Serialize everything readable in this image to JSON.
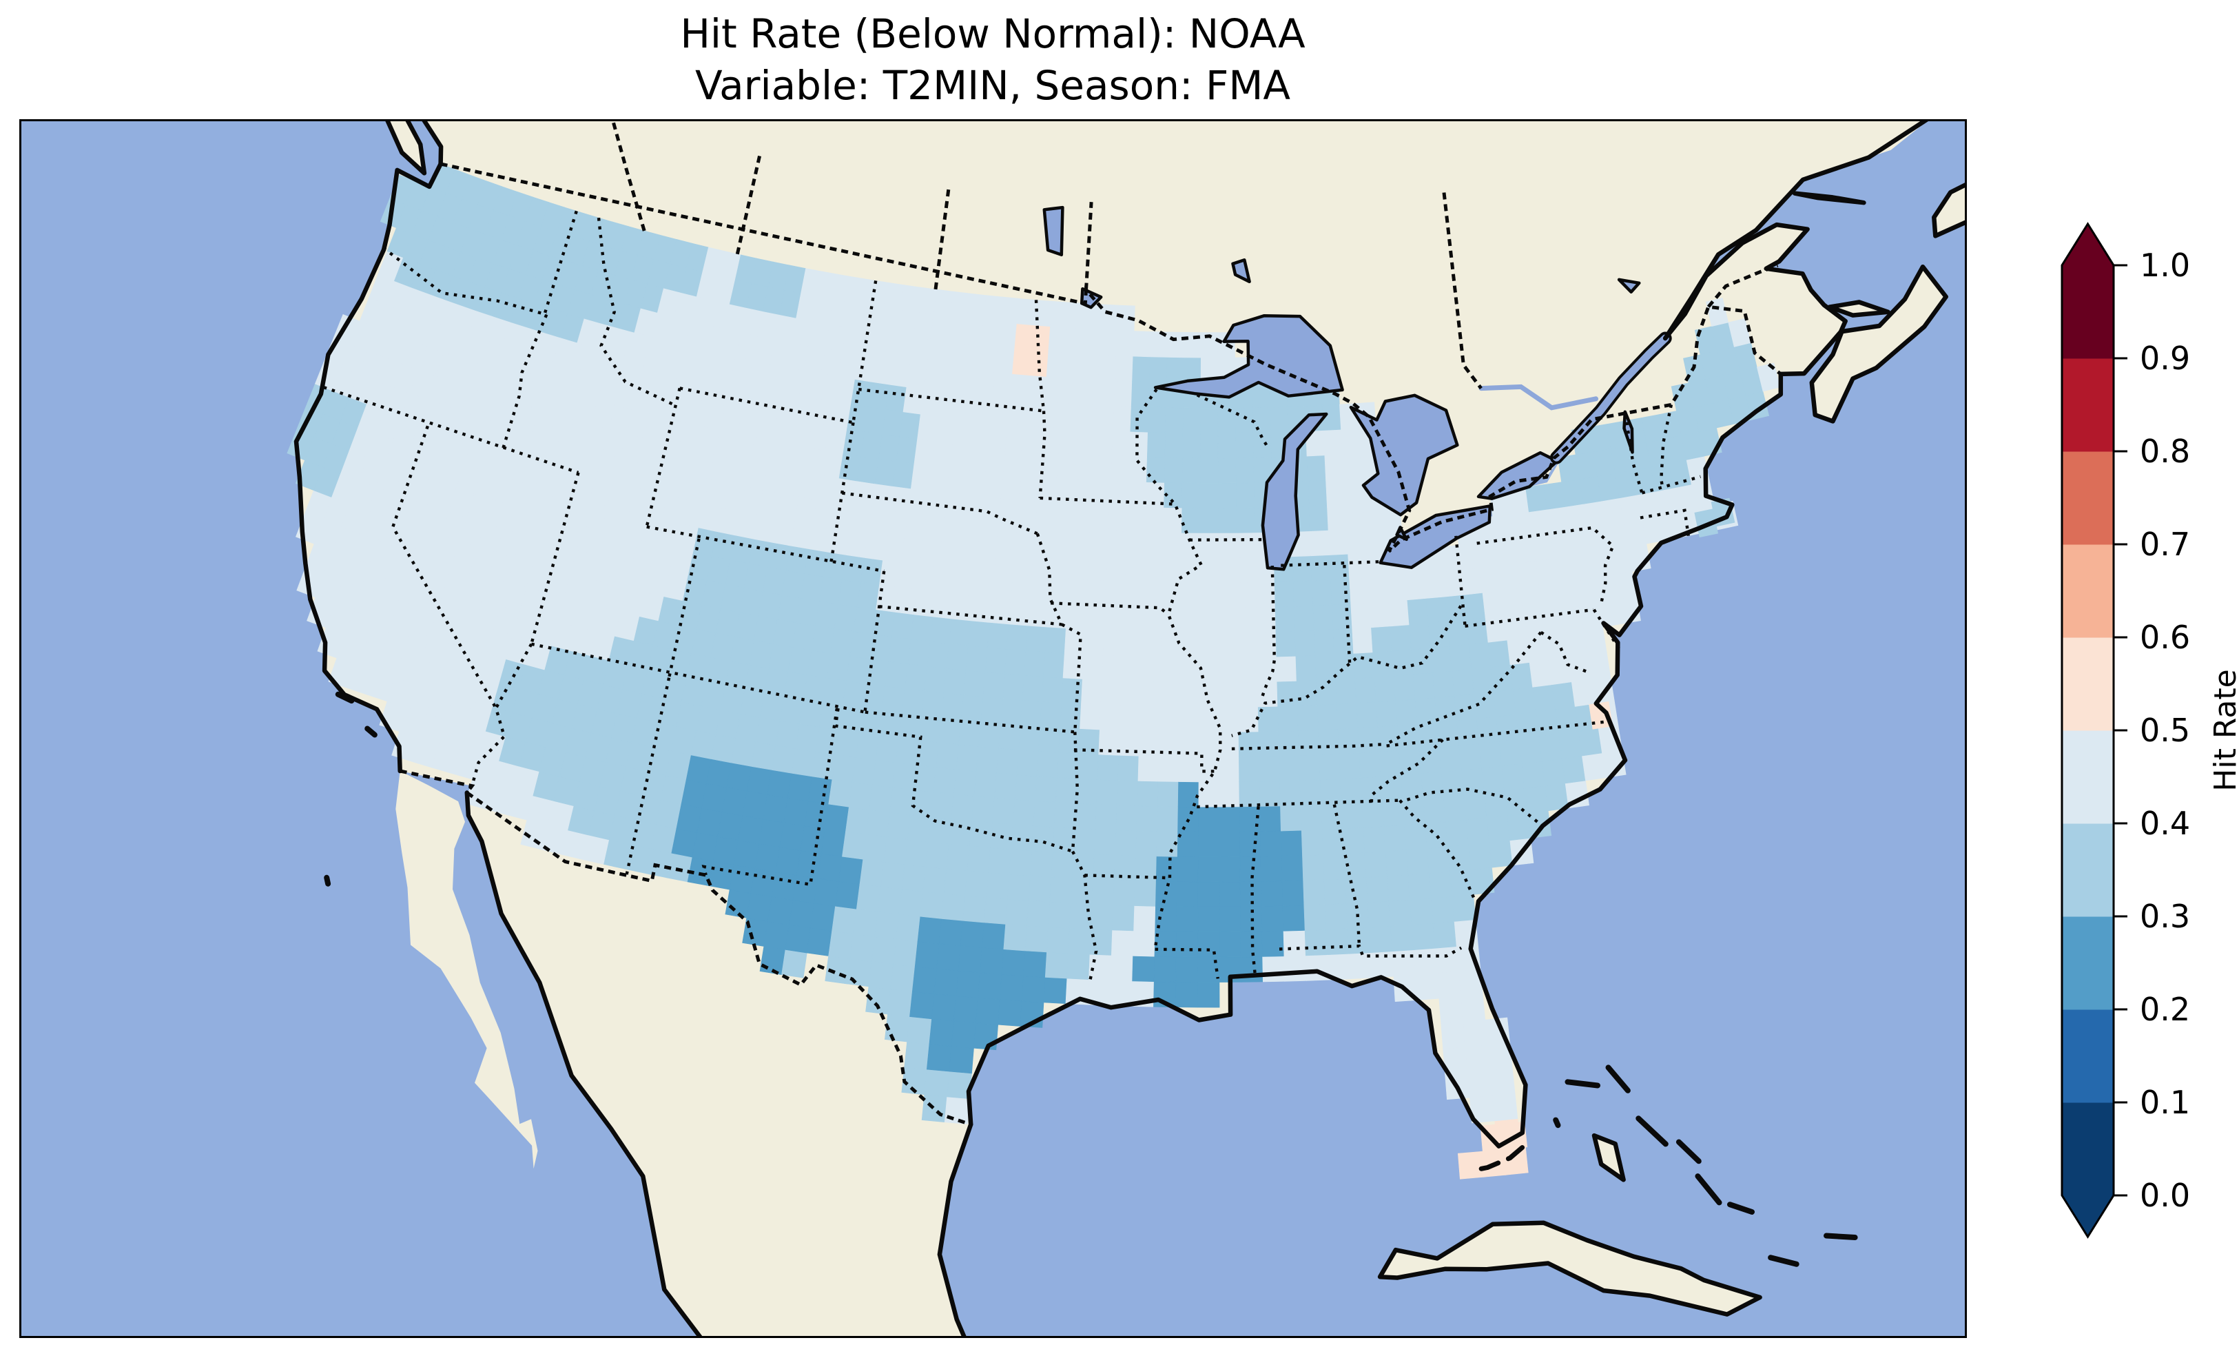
{
  "figure": {
    "title_line1": "Hit Rate (Below Normal): NOAA",
    "title_line2": "Variable: T2MIN, Season: FMA"
  },
  "colorbar": {
    "label": "Hit Rate",
    "orientation": "vertical",
    "extend": "both",
    "ticks": [
      "0.0",
      "0.1",
      "0.2",
      "0.3",
      "0.4",
      "0.5",
      "0.6",
      "0.7",
      "0.8",
      "0.9",
      "1.0"
    ],
    "bins": [
      {
        "range": "0.0-0.1",
        "color": "#0b3d70"
      },
      {
        "range": "0.1-0.2",
        "color": "#2569ad"
      },
      {
        "range": "0.2-0.3",
        "color": "#539dc8"
      },
      {
        "range": "0.3-0.4",
        "color": "#a7cfe4"
      },
      {
        "range": "0.4-0.5",
        "color": "#dce9f2"
      },
      {
        "range": "0.5-0.6",
        "color": "#fbe3d4"
      },
      {
        "range": "0.6-0.7",
        "color": "#f6b396"
      },
      {
        "range": "0.7-0.8",
        "color": "#dc6e58"
      },
      {
        "range": "0.8-0.9",
        "color": "#b2182b"
      },
      {
        "range": "0.9-1.0",
        "color": "#67001f"
      }
    ]
  },
  "map": {
    "ocean_color": "#92afdf",
    "land_color": "#f1eedd",
    "lake_color": "#8da7da",
    "line_color": "#0a0a0a"
  },
  "chart_data": {
    "type": "heatmap",
    "subtype": "geographic-grid-map",
    "title": "Hit Rate (Below Normal): NOAA",
    "variable": "T2MIN",
    "season": "FMA",
    "source": "NOAA",
    "measure": "Hit Rate",
    "value_range": [
      0.0,
      1.0
    ],
    "bin_width": 0.1,
    "grid_step_deg": 0.7,
    "legend_position": "right",
    "default_region": {
      "name": "conus-background",
      "hit_rate": "0.4-0.5",
      "bin": 4
    },
    "regions": [
      {
        "name": "red-river-valley-nd-mn",
        "hit_rate": "0.5-0.6",
        "bin": 5,
        "polygon": [
          [
            -97.7,
            48.6
          ],
          [
            -96.2,
            48.6
          ],
          [
            -96.2,
            46.7
          ],
          [
            -97.7,
            46.7
          ]
        ]
      },
      {
        "name": "south-florida-tip",
        "hit_rate": "0.5-0.6",
        "bin": 5,
        "polygon": [
          [
            -81.4,
            26.1
          ],
          [
            -80.2,
            26.1
          ],
          [
            -80.2,
            25.0
          ],
          [
            -81.4,
            25.0
          ]
        ]
      },
      {
        "name": "west-texas-new-mexico",
        "hit_rate": "0.2-0.3",
        "bin": 2,
        "polygon": [
          [
            -107.8,
            34.6
          ],
          [
            -105.8,
            34.9
          ],
          [
            -103.4,
            34.9
          ],
          [
            -102.0,
            33.6
          ],
          [
            -101.4,
            32.2
          ],
          [
            -102.3,
            30.3
          ],
          [
            -104.2,
            29.4
          ],
          [
            -106.0,
            31.0
          ],
          [
            -107.6,
            32.4
          ]
        ]
      },
      {
        "name": "central-coastal-texas",
        "hit_rate": "0.2-0.3",
        "bin": 2,
        "polygon": [
          [
            -99.6,
            31.6
          ],
          [
            -98.3,
            31.7
          ],
          [
            -96.2,
            31.0
          ],
          [
            -94.4,
            29.7
          ],
          [
            -95.7,
            28.4
          ],
          [
            -97.3,
            26.9
          ],
          [
            -98.3,
            27.5
          ],
          [
            -99.3,
            29.0
          ],
          [
            -99.7,
            30.4
          ]
        ]
      },
      {
        "name": "lower-mississippi-gulf",
        "hit_rate": "0.2-0.3",
        "bin": 2,
        "polygon": [
          [
            -90.6,
            35.4
          ],
          [
            -88.1,
            35.0
          ],
          [
            -86.7,
            33.9
          ],
          [
            -86.6,
            31.9
          ],
          [
            -88.4,
            30.2
          ],
          [
            -90.3,
            29.2
          ],
          [
            -92.2,
            30.2
          ],
          [
            -91.6,
            32.6
          ],
          [
            -90.9,
            34.3
          ]
        ]
      },
      {
        "name": "pacific-northwest",
        "hit_rate": "0.3-0.4",
        "bin": 3,
        "polygon": [
          [
            -125.3,
            49.4
          ],
          [
            -110.9,
            49.4
          ],
          [
            -111.6,
            47.9
          ],
          [
            -113.6,
            46.3
          ],
          [
            -117.0,
            45.4
          ],
          [
            -122.0,
            45.3
          ],
          [
            -124.9,
            46.7
          ]
        ]
      },
      {
        "name": "north-central-montana",
        "hit_rate": "0.3-0.4",
        "bin": 3,
        "polygon": [
          [
            -109.5,
            49.4
          ],
          [
            -106.6,
            49.4
          ],
          [
            -106.9,
            47.6
          ],
          [
            -109.6,
            47.8
          ]
        ]
      },
      {
        "name": "north-california-coast",
        "hit_rate": "0.3-0.4",
        "bin": 3,
        "polygon": [
          [
            -124.6,
            42.3
          ],
          [
            -122.4,
            42.3
          ],
          [
            -122.8,
            39.2
          ],
          [
            -124.3,
            39.2
          ]
        ]
      },
      {
        "name": "west-south-dakota",
        "hit_rate": "0.3-0.4",
        "bin": 3,
        "polygon": [
          [
            -104.1,
            45.9
          ],
          [
            -101.9,
            45.9
          ],
          [
            -101.4,
            43.1
          ],
          [
            -104.1,
            43.1
          ]
        ]
      },
      {
        "name": "southwest-and-southern-plains",
        "hit_rate": "0.3-0.4",
        "bin": 3,
        "polygon": [
          [
            -109.2,
            41.3
          ],
          [
            -102.0,
            41.3
          ],
          [
            -102.0,
            40.1
          ],
          [
            -97.4,
            40.2
          ],
          [
            -95.4,
            40.0
          ],
          [
            -94.0,
            36.6
          ],
          [
            -90.4,
            35.1
          ],
          [
            -90.9,
            33.1
          ],
          [
            -93.1,
            31.1
          ],
          [
            -96.1,
            28.6
          ],
          [
            -97.7,
            26.1
          ],
          [
            -99.1,
            26.1
          ],
          [
            -101.1,
            29.1
          ],
          [
            -104.4,
            29.5
          ],
          [
            -109.1,
            31.4
          ],
          [
            -114.9,
            34.4
          ],
          [
            -114.6,
            36.3
          ],
          [
            -112.1,
            37.1
          ],
          [
            -109.6,
            38.7
          ]
        ]
      },
      {
        "name": "upper-midwest-wisconsin",
        "hit_rate": "0.3-0.4",
        "bin": 3,
        "polygon": [
          [
            -93.3,
            47.5
          ],
          [
            -88.3,
            47.1
          ],
          [
            -84.4,
            46.5
          ],
          [
            -84.6,
            45.9
          ],
          [
            -86.3,
            45.0
          ],
          [
            -85.6,
            44.5
          ],
          [
            -85.7,
            42.7
          ],
          [
            -90.8,
            42.6
          ],
          [
            -91.6,
            43.8
          ],
          [
            -93.0,
            45.8
          ]
        ]
      },
      {
        "name": "indiana-ohio-valley",
        "hit_rate": "0.3-0.4",
        "bin": 3,
        "polygon": [
          [
            -87.6,
            41.9
          ],
          [
            -84.9,
            41.9
          ],
          [
            -84.9,
            38.9
          ],
          [
            -86.4,
            38.3
          ],
          [
            -87.6,
            39.9
          ]
        ]
      },
      {
        "name": "northern-new-england-upstate-ny",
        "hit_rate": "0.3-0.4",
        "bin": 3,
        "polygon": [
          [
            -70.0,
            47.5
          ],
          [
            -67.6,
            46.1
          ],
          [
            -67.5,
            44.4
          ],
          [
            -70.3,
            43.2
          ],
          [
            -73.3,
            42.6
          ],
          [
            -76.4,
            42.6
          ],
          [
            -78.1,
            43.3
          ],
          [
            -76.8,
            44.4
          ],
          [
            -74.4,
            45.0
          ],
          [
            -71.7,
            45.3
          ],
          [
            -70.7,
            46.0
          ]
        ]
      },
      {
        "name": "appalachia-southeast",
        "hit_rate": "0.3-0.4",
        "bin": 3,
        "polygon": [
          [
            -85.0,
            38.9
          ],
          [
            -82.9,
            40.2
          ],
          [
            -80.3,
            40.5
          ],
          [
            -79.3,
            39.3
          ],
          [
            -77.9,
            38.0
          ],
          [
            -76.4,
            36.7
          ],
          [
            -76.6,
            35.7
          ],
          [
            -77.9,
            34.5
          ],
          [
            -79.5,
            33.2
          ],
          [
            -81.2,
            31.9
          ],
          [
            -81.7,
            30.8
          ],
          [
            -84.6,
            30.8
          ],
          [
            -86.7,
            31.1
          ],
          [
            -87.5,
            33.1
          ],
          [
            -88.7,
            34.9
          ],
          [
            -89.2,
            36.4
          ],
          [
            -88.1,
            37.5
          ],
          [
            -86.9,
            38.4
          ]
        ]
      }
    ],
    "extra_cells": [
      {
        "lon": -82.0,
        "lat": 24.75,
        "hit_rate": "0.5-0.6",
        "bin": 5
      },
      {
        "lon": -81.3,
        "lat": 24.75,
        "hit_rate": "0.5-0.6",
        "bin": 5
      },
      {
        "lon": -80.65,
        "lat": 24.75,
        "hit_rate": "0.5-0.6",
        "bin": 5
      },
      {
        "lon": -80.6,
        "lat": 25.45,
        "hit_rate": "0.5-0.6",
        "bin": 5
      },
      {
        "lon": -81.25,
        "lat": 25.45,
        "hit_rate": "0.5-0.6",
        "bin": 5
      },
      {
        "lon": -76.1,
        "lat": 36.75,
        "hit_rate": "0.5-0.6",
        "bin": 5
      },
      {
        "lon": -70.4,
        "lat": 41.75,
        "hit_rate": "0.3-0.4",
        "bin": 3
      },
      {
        "lon": -71.1,
        "lat": 41.55,
        "hit_rate": "0.3-0.4",
        "bin": 3
      }
    ]
  }
}
